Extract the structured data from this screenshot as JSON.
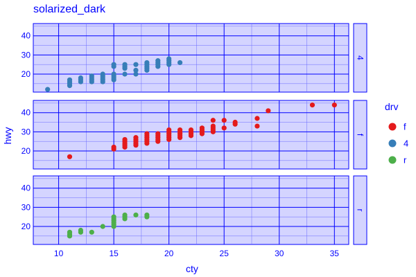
{
  "chart_data": {
    "type": "scatter",
    "title": "solarized_dark",
    "xlabel": "cty",
    "ylabel": "hwy",
    "xlim": [
      7.7,
      36.3
    ],
    "ylim": [
      10.6,
      46.4
    ],
    "x_ticks": [
      10,
      15,
      20,
      25,
      30,
      35
    ],
    "y_ticks": [
      20,
      30,
      40
    ],
    "facet_by": "drv",
    "facets": [
      "4",
      "f",
      "r"
    ],
    "legend": {
      "title": "drv",
      "position": "right",
      "items": [
        "f",
        "4",
        "r"
      ]
    },
    "colors": {
      "f": "#e41a1c",
      "4": "#377eb8",
      "r": "#4daf4a"
    },
    "grid": true,
    "series": [
      {
        "name": "4",
        "points": [
          [
            9,
            12
          ],
          [
            11,
            14
          ],
          [
            11,
            15
          ],
          [
            11,
            16
          ],
          [
            11,
            17
          ],
          [
            12,
            16
          ],
          [
            12,
            17
          ],
          [
            12,
            18
          ],
          [
            13,
            16
          ],
          [
            13,
            17
          ],
          [
            13,
            18
          ],
          [
            13,
            19
          ],
          [
            14,
            16
          ],
          [
            14,
            17
          ],
          [
            14,
            18
          ],
          [
            14,
            19
          ],
          [
            14,
            20
          ],
          [
            15,
            17
          ],
          [
            15,
            18
          ],
          [
            15,
            19
          ],
          [
            15,
            20
          ],
          [
            15,
            24
          ],
          [
            15,
            25
          ],
          [
            16,
            20
          ],
          [
            16,
            23
          ],
          [
            16,
            24
          ],
          [
            16,
            25
          ],
          [
            17,
            20
          ],
          [
            17,
            22
          ],
          [
            17,
            25
          ],
          [
            18,
            22
          ],
          [
            18,
            23
          ],
          [
            18,
            24
          ],
          [
            18,
            25
          ],
          [
            18,
            26
          ],
          [
            19,
            24
          ],
          [
            19,
            25
          ],
          [
            19,
            26
          ],
          [
            19,
            27
          ],
          [
            20,
            25
          ],
          [
            20,
            26
          ],
          [
            20,
            27
          ],
          [
            20,
            28
          ],
          [
            21,
            26
          ]
        ]
      },
      {
        "name": "f",
        "points": [
          [
            11,
            17
          ],
          [
            15,
            21
          ],
          [
            15,
            22
          ],
          [
            16,
            22
          ],
          [
            16,
            23
          ],
          [
            16,
            24
          ],
          [
            16,
            25
          ],
          [
            16,
            26
          ],
          [
            17,
            23
          ],
          [
            17,
            24
          ],
          [
            17,
            25
          ],
          [
            17,
            26
          ],
          [
            17,
            27
          ],
          [
            18,
            24
          ],
          [
            18,
            25
          ],
          [
            18,
            26
          ],
          [
            18,
            27
          ],
          [
            18,
            28
          ],
          [
            18,
            29
          ],
          [
            19,
            25
          ],
          [
            19,
            26
          ],
          [
            19,
            27
          ],
          [
            19,
            28
          ],
          [
            19,
            29
          ],
          [
            20,
            26
          ],
          [
            20,
            27
          ],
          [
            20,
            28
          ],
          [
            20,
            29
          ],
          [
            20,
            30
          ],
          [
            20,
            31
          ],
          [
            21,
            27
          ],
          [
            21,
            28
          ],
          [
            21,
            29
          ],
          [
            21,
            30
          ],
          [
            21,
            31
          ],
          [
            22,
            28
          ],
          [
            22,
            29
          ],
          [
            22,
            30
          ],
          [
            22,
            31
          ],
          [
            23,
            29
          ],
          [
            23,
            30
          ],
          [
            23,
            31
          ],
          [
            23,
            32
          ],
          [
            24,
            30
          ],
          [
            24,
            31
          ],
          [
            24,
            32
          ],
          [
            24,
            33
          ],
          [
            24,
            36
          ],
          [
            25,
            32
          ],
          [
            25,
            36
          ],
          [
            26,
            34
          ],
          [
            26,
            35
          ],
          [
            28,
            33
          ],
          [
            28,
            37
          ],
          [
            29,
            41
          ],
          [
            33,
            44
          ],
          [
            35,
            44
          ]
        ]
      },
      {
        "name": "r",
        "points": [
          [
            11,
            15
          ],
          [
            11,
            16
          ],
          [
            11,
            17
          ],
          [
            12,
            17
          ],
          [
            12,
            18
          ],
          [
            13,
            17
          ],
          [
            14,
            20
          ],
          [
            15,
            20
          ],
          [
            15,
            21
          ],
          [
            15,
            22
          ],
          [
            15,
            23
          ],
          [
            15,
            24
          ],
          [
            15,
            25
          ],
          [
            16,
            24
          ],
          [
            16,
            25
          ],
          [
            16,
            26
          ],
          [
            17,
            26
          ],
          [
            18,
            25
          ],
          [
            18,
            26
          ]
        ]
      }
    ]
  }
}
